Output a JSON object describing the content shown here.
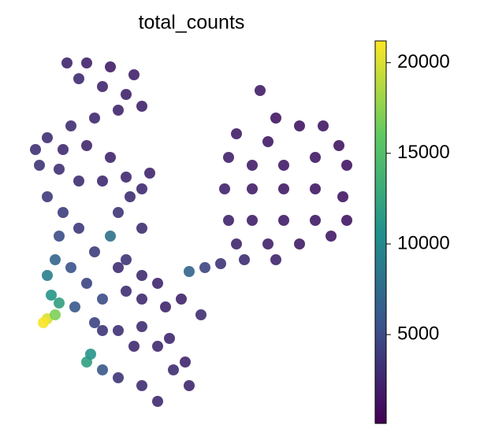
{
  "chart_data": {
    "type": "scatter",
    "title": "total_counts",
    "colormap": "viridis",
    "x": [
      330,
      350,
      300,
      340,
      380,
      410,
      430,
      440,
      400,
      360,
      320,
      290,
      285,
      320,
      360,
      400,
      435,
      440,
      400,
      360,
      320,
      290,
      300,
      340,
      380,
      420,
      350,
      310,
      280,
      260,
      240,
      85,
      110,
      140,
      170,
      100,
      130,
      160,
      180,
      150,
      120,
      90,
      60,
      45,
      50,
      80,
      110,
      140,
      75,
      100,
      130,
      160,
      180,
      190,
      60,
      80,
      75,
      100,
      70,
      60,
      90,
      65,
      75,
      60,
      55,
      70,
      110,
      95,
      140,
      120,
      150,
      165,
      180,
      160,
      150,
      180,
      200,
      230,
      255,
      210,
      180,
      160,
      130,
      110,
      115,
      130,
      150,
      180,
      200,
      220,
      240,
      235,
      200,
      170,
      150,
      130,
      120,
      180,
      215
    ],
    "y": [
      439,
      404,
      384,
      374,
      394,
      394,
      369,
      344,
      354,
      344,
      344,
      354,
      314,
      314,
      314,
      314,
      304,
      274,
      274,
      274,
      274,
      274,
      244,
      244,
      244,
      254,
      224,
      224,
      219,
      214,
      209,
      474,
      474,
      469,
      459,
      454,
      444,
      434,
      419,
      414,
      404,
      394,
      379,
      364,
      344,
      364,
      369,
      354,
      339,
      324,
      324,
      329,
      314,
      334,
      304,
      284,
      254,
      264,
      224,
      204,
      214,
      179,
      169,
      149,
      144,
      154,
      194,
      164,
      254,
      234,
      284,
      304,
      264,
      224,
      214,
      204,
      194,
      174,
      154,
      164,
      174,
      184,
      174,
      94,
      104,
      84,
      74,
      64,
      44,
      84,
      64,
      94,
      114,
      114,
      134,
      134,
      144,
      139,
      124
    ],
    "c": [
      2000,
      1500,
      2000,
      1800,
      1500,
      1600,
      1500,
      1500,
      1700,
      1800,
      2000,
      2200,
      2300,
      2000,
      1800,
      1600,
      1500,
      1500,
      1700,
      1900,
      2100,
      2400,
      2600,
      2200,
      1900,
      1700,
      2500,
      3000,
      3500,
      4500,
      7000,
      2500,
      2300,
      2000,
      2200,
      2800,
      2600,
      2300,
      2400,
      2500,
      2700,
      3000,
      3000,
      3200,
      3500,
      2800,
      2600,
      2500,
      3200,
      3000,
      2800,
      2700,
      2800,
      2500,
      3800,
      4000,
      5000,
      3800,
      7000,
      9000,
      5500,
      11000,
      12000,
      20000,
      21000,
      17000,
      4500,
      6000,
      8000,
      4000,
      3500,
      3000,
      3000,
      3500,
      3000,
      2800,
      2600,
      2400,
      3000,
      2500,
      2800,
      3000,
      5000,
      12000,
      11000,
      6000,
      3500,
      3000,
      2800,
      3000,
      2600,
      2500,
      2700,
      2800,
      3200,
      3500,
      4500,
      3000,
      2600
    ],
    "xlim": [
      30,
      460
    ],
    "ylim": [
      14,
      494
    ],
    "clim": [
      100,
      21200
    ],
    "cticks": [
      5000,
      10000,
      15000,
      20000
    ]
  }
}
